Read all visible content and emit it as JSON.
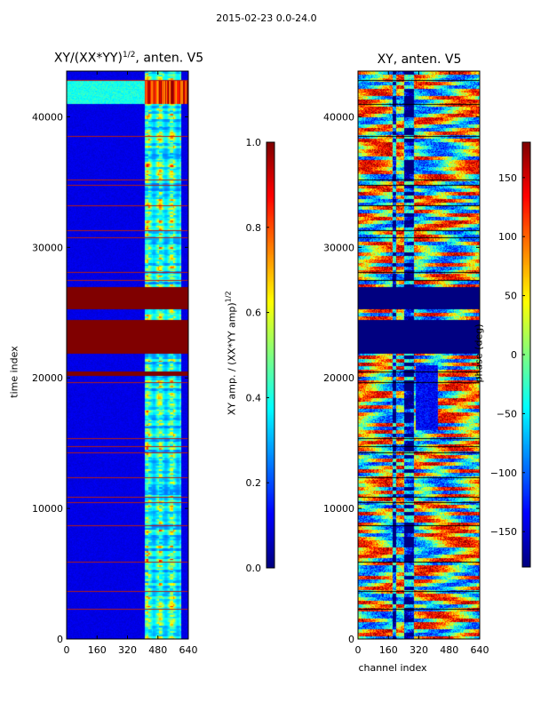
{
  "figure": {
    "suptitle": "2015-02-23 0.0-24.0"
  },
  "chart_data": [
    {
      "type": "heatmap",
      "title": "XY/(XX*YY)^{1/2}, anten. V5",
      "title_main": "XY/(XX*YY)",
      "title_exp": "1/2",
      "title_tail": ", anten. V5",
      "xlabel": "",
      "ylabel": "time index",
      "xlim": [
        0,
        640
      ],
      "ylim": [
        0,
        43500
      ],
      "xticks": [
        0,
        160,
        320,
        480,
        640
      ],
      "yticks": [
        0,
        10000,
        20000,
        30000,
        40000
      ],
      "colormap": "jet",
      "colorbar": {
        "label": "XY amp. / (XX*YY amp)^{1/2}",
        "label_main": "XY amp. / (XX*YY amp)",
        "label_exp": "1/2",
        "range": [
          0.0,
          1.0
        ],
        "ticks": [
          "0.0",
          "0.2",
          "0.4",
          "0.6",
          "0.8",
          "1.0"
        ]
      },
      "flagged_time_ranges": [
        [
          21900,
          24500
        ],
        [
          25300,
          27000
        ],
        [
          20200,
          20500
        ]
      ],
      "bright_channel_range": [
        410,
        600
      ]
    },
    {
      "type": "heatmap",
      "title": "XY, anten. V5",
      "xlabel": "channel index",
      "ylabel": "",
      "xlim": [
        0,
        640
      ],
      "ylim": [
        0,
        43500
      ],
      "xticks": [
        0,
        160,
        320,
        480,
        640
      ],
      "yticks": [
        0,
        10000,
        20000,
        30000,
        40000
      ],
      "colormap": "jet",
      "colorbar": {
        "label": "phase (deg)",
        "range": [
          -180,
          180
        ],
        "ticks": [
          "150",
          "100",
          "50",
          "0",
          "−50",
          "−100",
          "−150"
        ],
        "tick_values": [
          150,
          100,
          50,
          0,
          -50,
          -100,
          -150
        ]
      },
      "flagged_time_ranges": [
        [
          21900,
          24500
        ],
        [
          25300,
          27000
        ]
      ]
    }
  ]
}
